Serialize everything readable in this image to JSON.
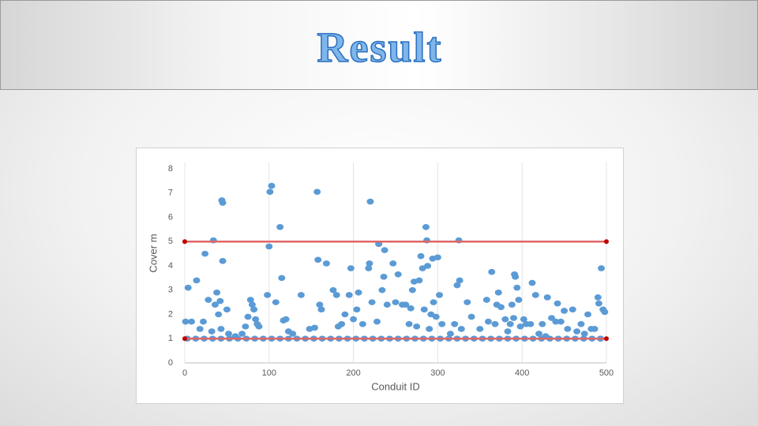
{
  "header": {
    "title": "Result"
  },
  "chart_data": {
    "type": "scatter",
    "x_label": "Conduit ID",
    "y_label": "Cover m",
    "xlim": [
      0,
      500
    ],
    "xticks": [
      0,
      100,
      200,
      300,
      400,
      500
    ],
    "ylim": [
      0,
      8
    ],
    "yticks": [
      0,
      1,
      2,
      3,
      4,
      5,
      6,
      7,
      8
    ],
    "grid": true,
    "series": [
      {
        "type": "scatter",
        "color": "#5b9bd5",
        "x": [
          1,
          4,
          8,
          14,
          18,
          22,
          24,
          28,
          32,
          34,
          36,
          38,
          40,
          42,
          43,
          44,
          45,
          45,
          50,
          52,
          60,
          68,
          72,
          75,
          78,
          80,
          82,
          84,
          86,
          88,
          98,
          100,
          101,
          103,
          108,
          113,
          115,
          117,
          120,
          123,
          128,
          138,
          148,
          154,
          157,
          158,
          160,
          162,
          168,
          176,
          180,
          182,
          186,
          190,
          195,
          197,
          200,
          204,
          206,
          211,
          218,
          219,
          220,
          222,
          228,
          230,
          234,
          236,
          237,
          240,
          247,
          250,
          253,
          258,
          262,
          266,
          268,
          270,
          272,
          275,
          278,
          280,
          282,
          284,
          286,
          287,
          288,
          290,
          292,
          294,
          295,
          298,
          300,
          302,
          305,
          315,
          320,
          323,
          325,
          326,
          328,
          335,
          340,
          350,
          358,
          360,
          364,
          368,
          370,
          372,
          375,
          380,
          383,
          386,
          388,
          390,
          391,
          392,
          394,
          396,
          398,
          402,
          405,
          410,
          412,
          416,
          420,
          424,
          428,
          430,
          435,
          440,
          442,
          446,
          450,
          454,
          460,
          465,
          470,
          474,
          478,
          482,
          486,
          490,
          491,
          493,
          494,
          496,
          498,
          3,
          13,
          23,
          33,
          43,
          53,
          63,
          73,
          83,
          93,
          103,
          113,
          123,
          133,
          143,
          153,
          163,
          173,
          183,
          193,
          203,
          213,
          223,
          233,
          243,
          253,
          263,
          273,
          283,
          293,
          303,
          313,
          323,
          333,
          343,
          353,
          363,
          373,
          383,
          393,
          403,
          413,
          423,
          433,
          443,
          453,
          463,
          473,
          483,
          493
        ],
        "values": [
          1.7,
          3.1,
          1.7,
          3.4,
          1.4,
          1.7,
          4.5,
          2.6,
          1.3,
          5.05,
          2.4,
          2.9,
          2.0,
          2.55,
          1.4,
          6.7,
          6.6,
          4.2,
          2.2,
          1.2,
          1.1,
          1.2,
          1.5,
          1.9,
          2.6,
          2.4,
          2.2,
          1.8,
          1.6,
          1.5,
          2.8,
          4.8,
          7.05,
          7.3,
          2.5,
          5.6,
          3.5,
          1.75,
          1.8,
          1.3,
          1.2,
          2.8,
          1.4,
          1.45,
          7.05,
          4.25,
          2.4,
          2.2,
          4.1,
          3.0,
          2.8,
          1.5,
          1.6,
          2.0,
          2.8,
          3.9,
          1.8,
          2.2,
          2.9,
          1.6,
          3.9,
          4.1,
          6.65,
          2.5,
          1.7,
          4.9,
          3.0,
          3.55,
          4.65,
          2.4,
          4.1,
          2.5,
          3.65,
          2.4,
          2.4,
          1.6,
          2.25,
          3.0,
          3.35,
          1.5,
          3.4,
          4.4,
          3.9,
          2.2,
          5.6,
          5.05,
          4.0,
          1.4,
          2.0,
          4.3,
          2.5,
          1.9,
          4.35,
          2.8,
          1.6,
          1.2,
          1.6,
          3.2,
          5.05,
          3.4,
          1.4,
          2.5,
          1.9,
          1.4,
          2.6,
          1.7,
          3.75,
          1.6,
          2.4,
          2.9,
          2.3,
          1.8,
          1.3,
          1.6,
          2.4,
          1.85,
          3.65,
          3.55,
          3.1,
          2.6,
          1.5,
          1.8,
          1.6,
          1.6,
          3.3,
          2.8,
          1.2,
          1.6,
          1.1,
          2.7,
          1.85,
          1.7,
          2.45,
          1.7,
          2.15,
          1.4,
          2.2,
          1.3,
          1.6,
          1.2,
          2.0,
          1.4,
          1.4,
          2.7,
          2.45,
          1.0,
          3.9,
          2.2,
          2.1,
          1,
          1,
          1,
          1,
          1,
          1,
          1,
          1,
          1,
          1,
          1,
          1,
          1,
          1,
          1,
          1,
          1,
          1,
          1,
          1,
          1,
          1,
          1,
          1,
          1,
          1,
          1,
          1,
          1,
          1,
          1,
          1,
          1,
          1,
          1,
          1,
          1,
          1,
          1,
          1,
          1,
          1,
          1,
          1,
          1,
          1,
          1,
          1,
          1,
          1
        ]
      },
      {
        "type": "line",
        "color": "#e06666",
        "x": [
          0,
          500
        ],
        "values": [
          5,
          5
        ]
      },
      {
        "type": "line",
        "color": "#e06666",
        "x": [
          0,
          500
        ],
        "values": [
          1,
          1
        ]
      }
    ]
  }
}
